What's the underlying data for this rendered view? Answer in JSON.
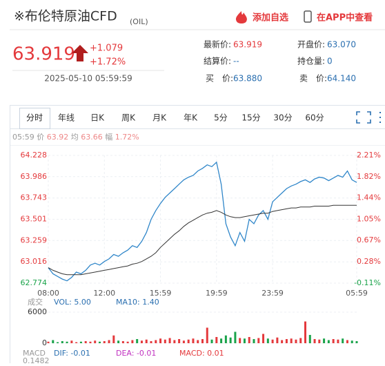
{
  "header": {
    "title": "※布伦特原油CFD",
    "code": "(OIL)",
    "add_watch": "添加自选",
    "open_app": "在APP中查看"
  },
  "quote": {
    "price": "63.919",
    "change": "+1.079",
    "change_pct": "+1.72%",
    "datetime": "2025-05-10 05:59:59",
    "fields": [
      {
        "label": "最新价:",
        "value": "63.919"
      },
      {
        "label": "开盘价:",
        "value": "63.070"
      },
      {
        "label": "结算价:",
        "value": "--"
      },
      {
        "label": "持仓量:",
        "value": "0"
      },
      {
        "label": "买　价:",
        "value": "63.880"
      },
      {
        "label": "卖　价:",
        "value": "64.140"
      }
    ]
  },
  "tabs": [
    "分时",
    "年线",
    "日K",
    "周K",
    "月K",
    "年K",
    "5分",
    "15分",
    "30分",
    "60分"
  ],
  "info": {
    "time": "05:59",
    "price_label": "价",
    "price": "63.92",
    "avg_label": "均",
    "avg": "63.66",
    "amp_label": "幅",
    "amp": "1.72%"
  },
  "chart_data": {
    "type": "line",
    "categories": [
      "08:00",
      null,
      null,
      null,
      null,
      null,
      null,
      null,
      null,
      null,
      null,
      null,
      "12:00",
      null,
      null,
      null,
      null,
      null,
      null,
      null,
      null,
      null,
      null,
      null,
      "15:59",
      null,
      null,
      null,
      null,
      null,
      null,
      null,
      null,
      null,
      null,
      null,
      "19:59",
      null,
      null,
      null,
      null,
      null,
      null,
      null,
      null,
      null,
      null,
      null,
      "23:59",
      null,
      null,
      null,
      null,
      null,
      null,
      null,
      null,
      null,
      null,
      null,
      null,
      null,
      null,
      null,
      null,
      null,
      "05:59"
    ],
    "series": [
      {
        "color": "#2f86c9",
        "values": [
          62.95,
          62.88,
          62.85,
          62.82,
          62.8,
          62.84,
          62.9,
          62.88,
          62.92,
          62.98,
          63.0,
          62.98,
          63.02,
          63.05,
          63.1,
          63.08,
          63.12,
          63.15,
          63.2,
          63.18,
          63.25,
          63.35,
          63.5,
          63.6,
          63.68,
          63.75,
          63.8,
          63.85,
          63.9,
          63.95,
          63.98,
          64.0,
          64.05,
          64.08,
          64.12,
          64.1,
          64.15,
          63.9,
          63.45,
          63.3,
          63.2,
          63.35,
          63.25,
          63.5,
          63.45,
          63.55,
          63.6,
          63.5,
          63.7,
          63.75,
          63.8,
          63.85,
          63.88,
          63.9,
          63.93,
          63.95,
          63.92,
          63.96,
          63.98,
          63.97,
          63.94,
          63.97,
          64.0,
          63.98,
          64.05,
          63.95,
          63.92
        ]
      },
      {
        "color": "#333333",
        "values": [
          62.95,
          62.92,
          62.9,
          62.88,
          62.87,
          62.87,
          62.87,
          62.87,
          62.88,
          62.89,
          62.9,
          62.91,
          62.92,
          62.93,
          62.94,
          62.95,
          62.96,
          62.97,
          62.99,
          63.0,
          63.02,
          63.05,
          63.08,
          63.12,
          63.18,
          63.23,
          63.28,
          63.33,
          63.37,
          63.42,
          63.46,
          63.49,
          63.52,
          63.55,
          63.57,
          63.58,
          63.6,
          63.58,
          63.55,
          63.53,
          63.52,
          63.52,
          63.53,
          63.54,
          63.55,
          63.56,
          63.57,
          63.57,
          63.59,
          63.6,
          63.61,
          63.62,
          63.63,
          63.63,
          63.64,
          63.64,
          63.64,
          63.65,
          63.65,
          63.65,
          63.65,
          63.66,
          63.66,
          63.66,
          63.66,
          63.66,
          63.66
        ]
      }
    ],
    "ylim": [
      62.774,
      64.228
    ],
    "yticks": [
      64.228,
      63.986,
      63.743,
      63.501,
      63.259,
      63.016,
      62.774
    ],
    "y2lim": [
      -0.11,
      2.21
    ],
    "y2ticks": [
      {
        "value": 2.21,
        "label": "2.21%"
      },
      {
        "value": 1.82,
        "label": "1.82%"
      },
      {
        "value": 1.44,
        "label": "1.44%"
      },
      {
        "value": 1.05,
        "label": "1.05%"
      },
      {
        "value": 0.67,
        "label": "0.67%"
      },
      {
        "value": 0.28,
        "label": "0.28%"
      },
      {
        "value": -0.11,
        "label": "-0.11%"
      }
    ],
    "grid": true,
    "up_color": "#e4393c",
    "down_color": "#1aa34a",
    "volume": {
      "label": "成交",
      "vol": "VOL: 5.00",
      "ma10": "MA10: 1.40",
      "ylim": [
        0,
        6000
      ],
      "yticks": [
        6000,
        0
      ],
      "values": [
        300,
        600,
        200,
        400,
        300,
        500,
        200,
        300,
        400,
        300,
        500,
        300,
        400,
        600,
        1500,
        500,
        400,
        300,
        600,
        800,
        500,
        700,
        400,
        600,
        900,
        700,
        1000,
        600,
        800,
        500,
        700,
        900,
        600,
        800,
        3000,
        700,
        1200,
        900,
        1500,
        1100,
        2200,
        1000,
        900,
        1200,
        800,
        1000,
        1800,
        900,
        700,
        1100,
        600,
        800,
        900,
        700,
        1000,
        4200,
        1600,
        800,
        700,
        900,
        600,
        800,
        700,
        900,
        600,
        500,
        400
      ]
    },
    "macd": {
      "label": "MACD",
      "dif": "DIF: -0.01",
      "dea": "DEA: -0.01",
      "macd": "MACD: 0.01",
      "top": "0.1482"
    }
  }
}
